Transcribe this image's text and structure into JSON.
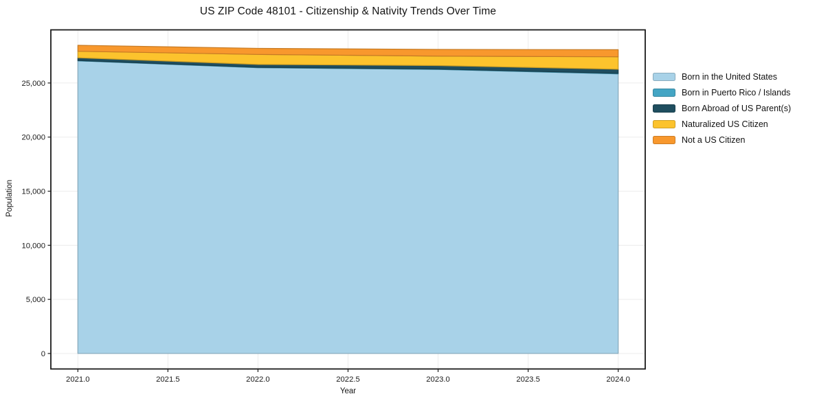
{
  "chart_data": {
    "type": "area",
    "stacked": true,
    "title": "US ZIP Code 48101 - Citizenship & Nativity Trends Over Time",
    "xlabel": "Year",
    "ylabel": "Population",
    "x": [
      2021,
      2022,
      2023,
      2024
    ],
    "series": [
      {
        "name": "Born in the United States",
        "color": "#a8d2e8",
        "values": [
          27043,
          26414,
          26252,
          25842
        ]
      },
      {
        "name": "Born in Puerto Rico / Islands",
        "color": "#44a5c4",
        "values": [
          38,
          35,
          42,
          51
        ]
      },
      {
        "name": "Born Abroad of US Parent(s)",
        "color": "#1f4e5f",
        "values": [
          252,
          264,
          318,
          379
        ]
      },
      {
        "name": "Naturalized US Citizen",
        "color": "#fcc32d",
        "values": [
          598,
          926,
          872,
          1148
        ]
      },
      {
        "name": "Not a US Citizen",
        "color": "#f8982d",
        "values": [
          553,
          562,
          618,
          659
        ]
      }
    ],
    "xticks": {
      "values": [
        2021.0,
        2021.5,
        2022.0,
        2022.5,
        2023.0,
        2023.5,
        2024.0
      ],
      "labels": [
        "2021.0",
        "2021.5",
        "2022.0",
        "2022.5",
        "2023.0",
        "2023.5",
        "2024.0"
      ]
    },
    "yticks": {
      "values": [
        0,
        5000,
        10000,
        15000,
        20000,
        25000
      ],
      "labels": [
        "0",
        "5,000",
        "10,000",
        "15,000",
        "20,000",
        "25,000"
      ]
    },
    "xlim": [
      2020.85,
      2024.15
    ],
    "ylim": [
      -1430,
      29910
    ],
    "grid": true,
    "legend_position": "right",
    "frame_color": "#1a1a1a",
    "grid_color": "#ececec"
  }
}
